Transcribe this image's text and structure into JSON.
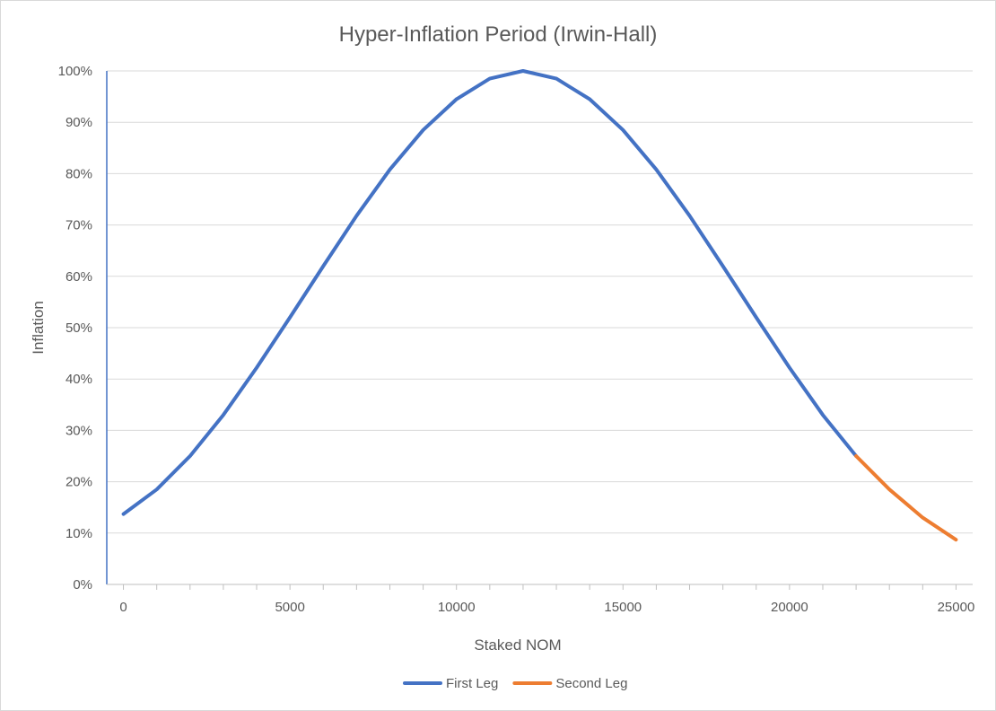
{
  "chart_data": {
    "type": "line",
    "title": "Hyper-Inflation Period (Irwin-Hall)",
    "xlabel": "Staked NOM",
    "ylabel": "Inflation",
    "xlim": [
      -500,
      25500
    ],
    "ylim": [
      0,
      1
    ],
    "x_ticks": [
      0,
      5000,
      10000,
      15000,
      20000,
      25000
    ],
    "y_ticks": [
      {
        "value": 0,
        "label": "0%"
      },
      {
        "value": 0.1,
        "label": "10%"
      },
      {
        "value": 0.2,
        "label": "20%"
      },
      {
        "value": 0.3,
        "label": "30%"
      },
      {
        "value": 0.4,
        "label": "40%"
      },
      {
        "value": 0.5,
        "label": "50%"
      },
      {
        "value": 0.6,
        "label": "60%"
      },
      {
        "value": 0.7,
        "label": "70%"
      },
      {
        "value": 0.8,
        "label": "80%"
      },
      {
        "value": 0.9,
        "label": "90%"
      },
      {
        "value": 1.0,
        "label": "100%"
      }
    ],
    "grid": "horizontal",
    "legend_position": "bottom",
    "series": [
      {
        "name": "First Leg",
        "color": "#4472c4",
        "x": [
          0,
          1000,
          2000,
          3000,
          4000,
          5000,
          6000,
          7000,
          8000,
          9000,
          10000,
          11000,
          12000,
          13000,
          14000,
          15000,
          16000,
          17000,
          18000,
          19000,
          20000,
          21000,
          22000
        ],
        "y": [
          0.137,
          0.185,
          0.25,
          0.33,
          0.422,
          0.52,
          0.62,
          0.718,
          0.808,
          0.885,
          0.945,
          0.985,
          1.0,
          0.985,
          0.945,
          0.885,
          0.808,
          0.718,
          0.62,
          0.52,
          0.422,
          0.33,
          0.25
        ]
      },
      {
        "name": "Second Leg",
        "color": "#ed7d31",
        "x": [
          22000,
          23000,
          24000,
          25000
        ],
        "y": [
          0.25,
          0.185,
          0.13,
          0.087
        ]
      }
    ]
  }
}
